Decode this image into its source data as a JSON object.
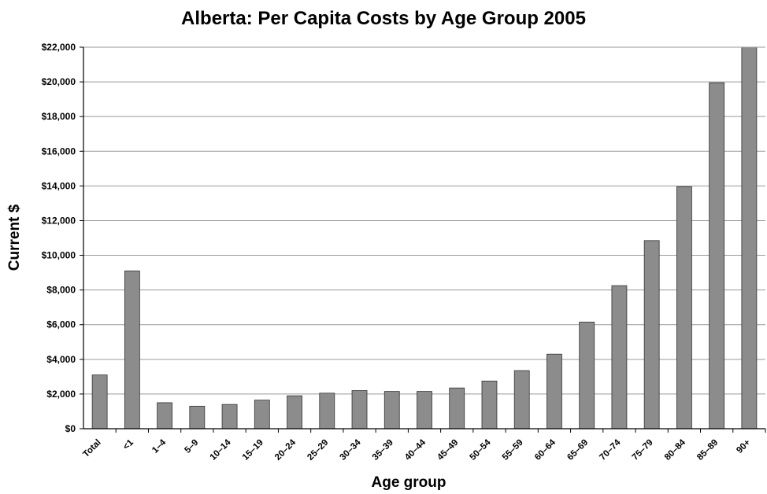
{
  "chart_data": {
    "type": "bar",
    "title": "Alberta: Per Capita Costs by Age Group 2005",
    "xlabel": "Age group",
    "ylabel": "Current $",
    "ylim": [
      0,
      22000
    ],
    "ytick_step": 2000,
    "ytick_prefix": "$",
    "grid": true,
    "legend": "none",
    "bar_color": "#8c8c8c",
    "categories": [
      "Total",
      "<1",
      "1–4",
      "5–9",
      "10–14",
      "15–19",
      "20–24",
      "25–29",
      "30–34",
      "35–39",
      "40–44",
      "45–49",
      "50–54",
      "55–59",
      "60–64",
      "65–69",
      "70–74",
      "75–79",
      "80–84",
      "85–89",
      "90+"
    ],
    "values": [
      3100,
      9100,
      1500,
      1300,
      1400,
      1650,
      1900,
      2050,
      2200,
      2150,
      2150,
      2350,
      2750,
      3350,
      4300,
      6150,
      8250,
      10850,
      13950,
      19950,
      22000
    ]
  }
}
